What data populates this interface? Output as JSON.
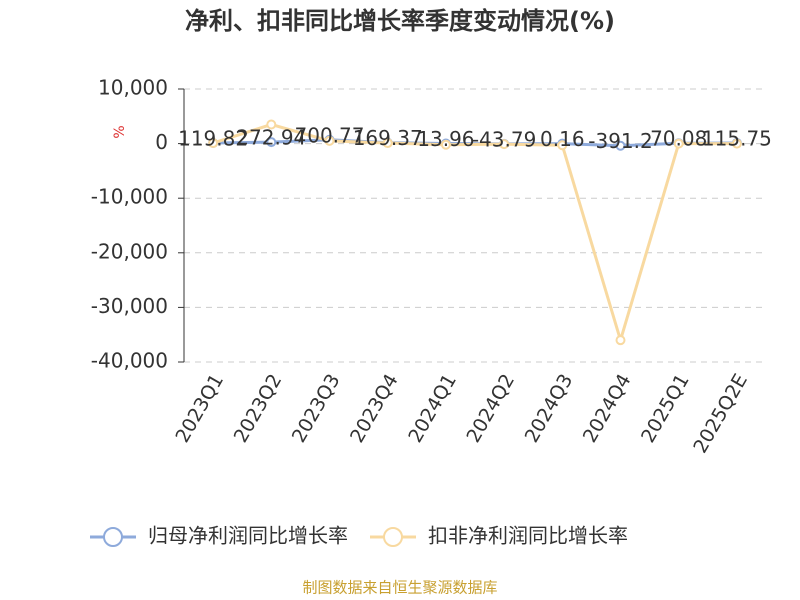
{
  "chart_data": {
    "type": "line",
    "title": "净利、扣非同比增长率季度变动情况(%)",
    "y_label": "%",
    "source": "制图数据来自恒生聚源数据库",
    "categories": [
      "2023Q1",
      "2023Q2",
      "2023Q3",
      "2023Q4",
      "2024Q1",
      "2024Q2",
      "2024Q3",
      "2024Q4",
      "2025Q1",
      "2025Q2E"
    ],
    "series": [
      {
        "name": "归母净利润同比增长率",
        "color": "#8eaadb",
        "values": [
          119.82,
          272.94,
          700.77,
          169.37,
          13.96,
          -43.79,
          0.16,
          -391.2,
          70.08,
          115.75
        ]
      },
      {
        "name": "扣非净利润同比增长率",
        "color": "#f8d9a0",
        "values": [
          100,
          3500,
          500,
          100,
          -200,
          -100,
          -300,
          -36000,
          0,
          0
        ]
      }
    ],
    "ylim": [
      -40000,
      10000
    ],
    "yticks": [
      {
        "value": -40000,
        "label": "-40,000"
      },
      {
        "value": -30000,
        "label": "-30,000"
      },
      {
        "value": -20000,
        "label": "-20,000"
      },
      {
        "value": -10000,
        "label": "-10,000"
      },
      0,
      {
        "value": 10000,
        "label": "10,000"
      }
    ],
    "grid": true
  }
}
